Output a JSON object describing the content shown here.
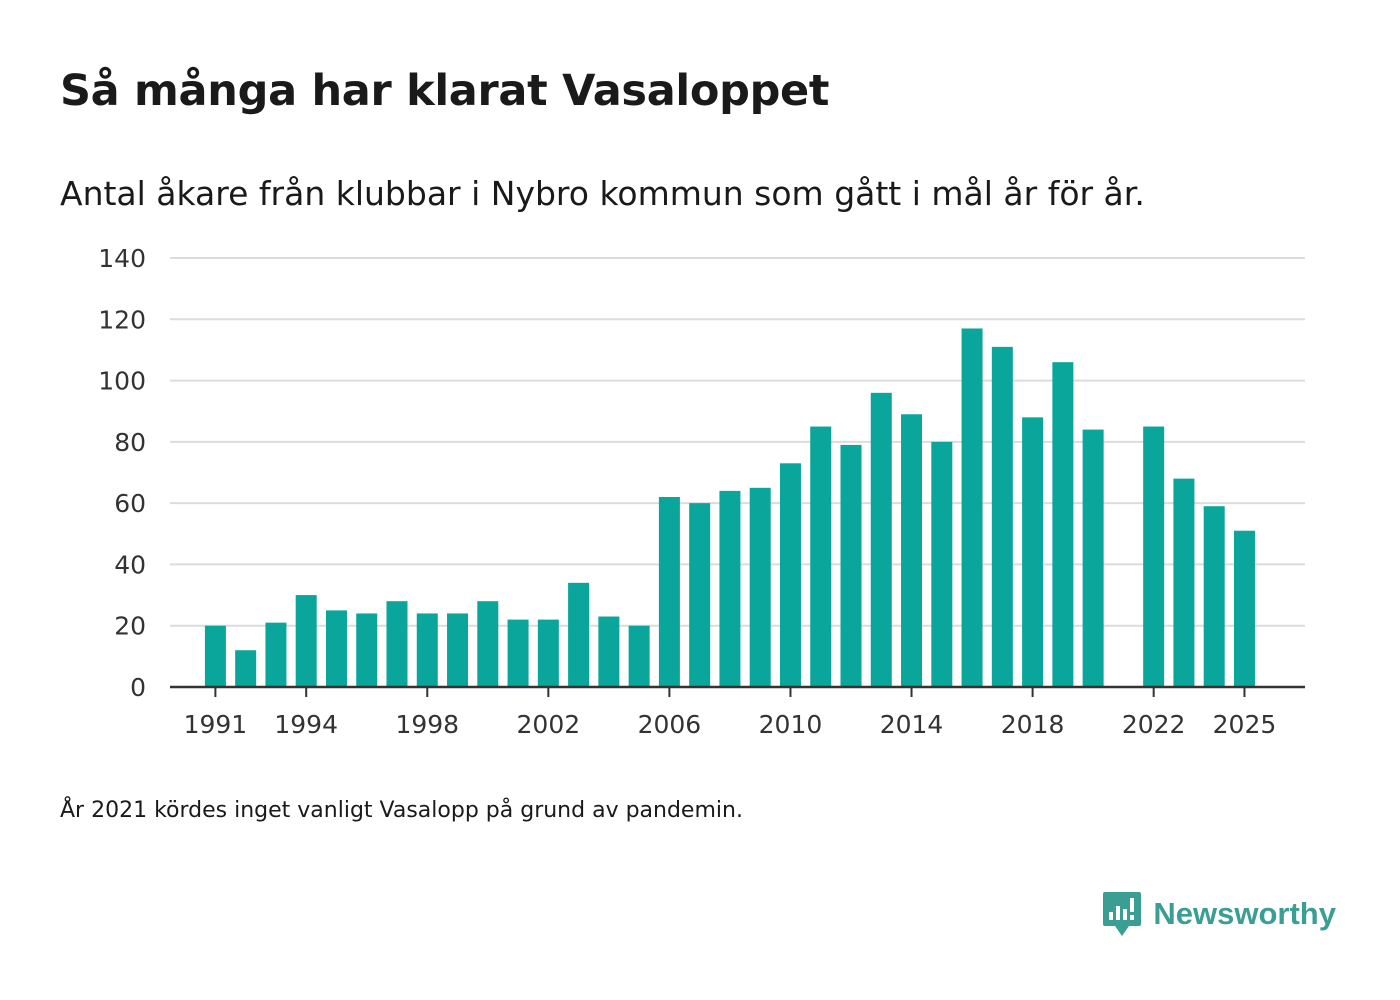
{
  "title": "Så många har klarat Vasaloppet",
  "subtitle": "Antal åkare från klubbar i Nybro kommun som gått i mål år för år.",
  "footnote": "År 2021 kördes inget vanligt Vasalopp på grund av pandemin.",
  "brand": {
    "name": "Newsworthy",
    "icon": "newsworthy-logo-icon",
    "color": "#3a9e95"
  },
  "colors": {
    "bar": "#0aa59b",
    "grid": "#dcdcdc",
    "axis": "#333333"
  },
  "chart_data": {
    "type": "bar",
    "title": "Så många har klarat Vasaloppet",
    "subtitle": "Antal åkare från klubbar i Nybro kommun som gått i mål år för år.",
    "xlabel": "",
    "ylabel": "",
    "ylim": [
      0,
      140
    ],
    "yticks": [
      0,
      20,
      40,
      60,
      80,
      100,
      120,
      140
    ],
    "xticks": [
      1991,
      1994,
      1998,
      2002,
      2006,
      2010,
      2014,
      2018,
      2022,
      2025
    ],
    "xlim": [
      1989.5,
      2027
    ],
    "grid": true,
    "categories": [
      1991,
      1992,
      1993,
      1994,
      1995,
      1996,
      1997,
      1998,
      1999,
      2000,
      2001,
      2002,
      2003,
      2004,
      2005,
      2006,
      2007,
      2008,
      2009,
      2010,
      2011,
      2012,
      2013,
      2014,
      2015,
      2016,
      2017,
      2018,
      2019,
      2020,
      2021,
      2022,
      2023,
      2024,
      2025
    ],
    "values": [
      20,
      12,
      21,
      30,
      25,
      24,
      28,
      24,
      24,
      28,
      22,
      22,
      34,
      23,
      20,
      62,
      60,
      64,
      65,
      73,
      85,
      79,
      96,
      89,
      80,
      117,
      111,
      88,
      106,
      84,
      null,
      85,
      68,
      59,
      51
    ]
  }
}
